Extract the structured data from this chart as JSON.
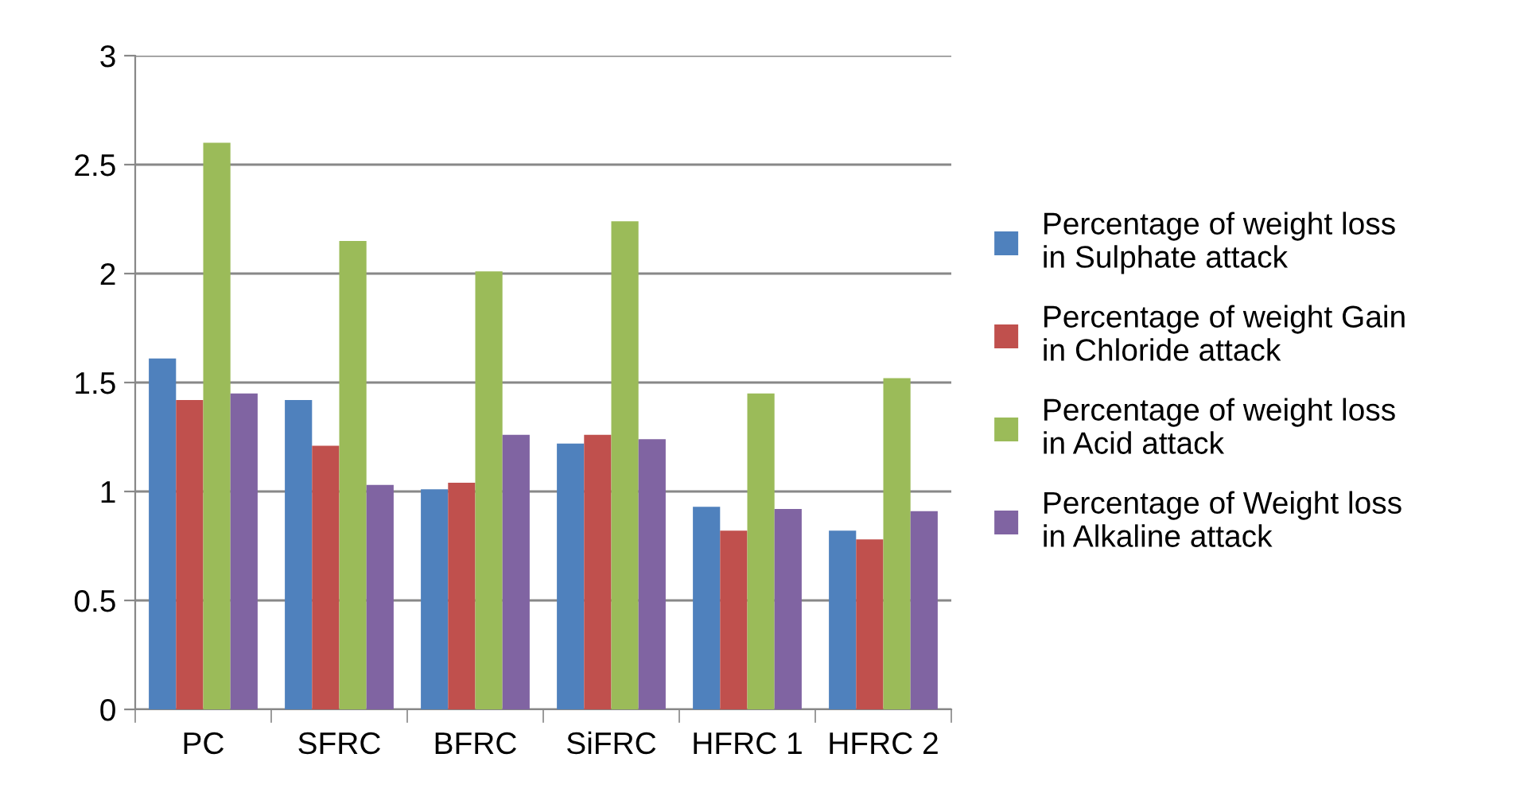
{
  "chart_data": {
    "type": "bar",
    "categories": [
      "PC",
      "SFRC",
      "BFRC",
      "SiFRC",
      "HFRC 1",
      "HFRC 2"
    ],
    "series": [
      {
        "name": "Percentage of weight loss in Sulphate attack",
        "color": "#4f81bd",
        "values": [
          1.61,
          1.42,
          1.01,
          1.22,
          0.93,
          0.82
        ]
      },
      {
        "name": "Percentage of weight Gain in Chloride attack",
        "color": "#c0504d",
        "values": [
          1.42,
          1.21,
          1.04,
          1.26,
          0.82,
          0.78
        ]
      },
      {
        "name": "Percentage of weight loss in Acid attack",
        "color": "#9bbb59",
        "values": [
          2.6,
          2.15,
          2.01,
          2.24,
          1.45,
          1.52
        ]
      },
      {
        "name": "Percentage of Weight loss in Alkaline attack",
        "color": "#8064a2",
        "values": [
          1.45,
          1.03,
          1.26,
          1.24,
          0.92,
          0.91
        ]
      }
    ],
    "ylim": [
      0,
      3
    ],
    "yticks": [
      0,
      {
        "value": 0.5,
        "label": "0.5"
      },
      1,
      {
        "value": 1.5,
        "label": "1.5"
      },
      2,
      {
        "value": 2.5,
        "label": "2.5"
      },
      3
    ],
    "grid": "y",
    "legend": "right"
  }
}
